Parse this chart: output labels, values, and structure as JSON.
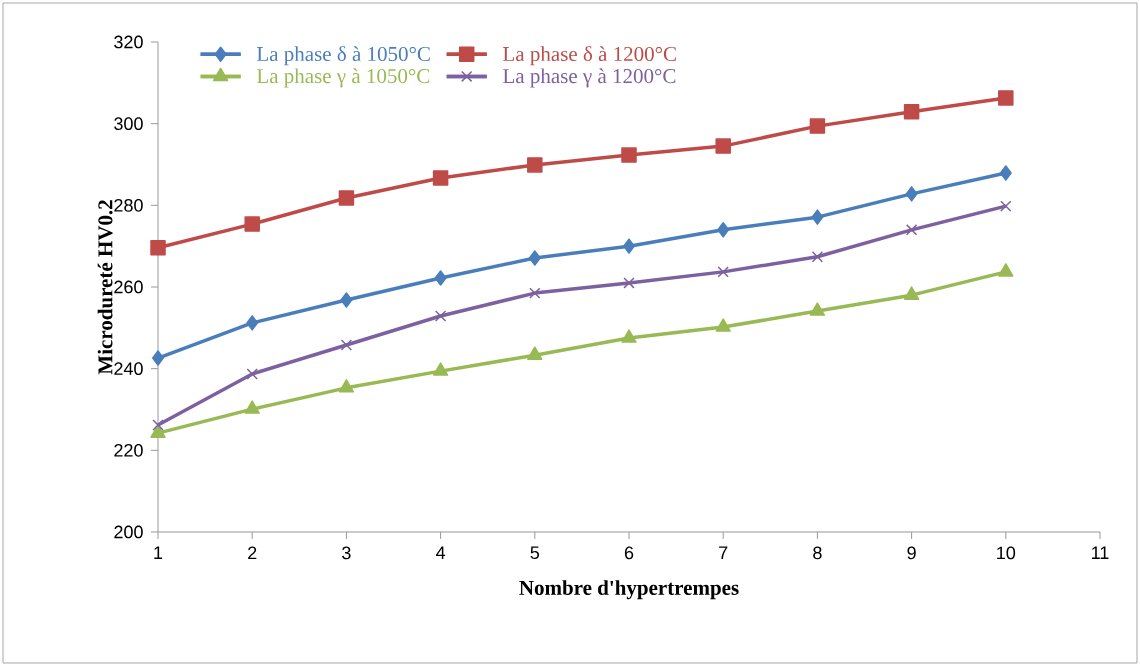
{
  "chart_data": {
    "type": "line",
    "xlabel": "Nombre d'hypertrempes",
    "ylabel": "Microdureté HV0.2",
    "x": [
      1,
      2,
      3,
      4,
      5,
      6,
      7,
      8,
      9,
      10
    ],
    "xlim": [
      1,
      11
    ],
    "xticks": [
      1,
      2,
      3,
      4,
      5,
      6,
      7,
      8,
      9,
      10,
      11
    ],
    "ylim": [
      200,
      320
    ],
    "yticks": [
      200,
      220,
      240,
      260,
      280,
      300,
      320
    ],
    "grid": false,
    "legend": "top left",
    "line_style": "solid",
    "series": [
      {
        "name": "La phase δ à 1050°C",
        "color": "#4a7ebb",
        "marker": "diamond",
        "values": [
          242.6,
          251.2,
          256.8,
          262.2,
          267.1,
          270.0,
          274.0,
          277.1,
          282.8,
          287.9
        ]
      },
      {
        "name": "La phase δ à 1200°C",
        "color": "#be4b48",
        "marker": "square",
        "values": [
          269.6,
          275.4,
          281.8,
          286.7,
          289.9,
          292.3,
          294.5,
          299.4,
          302.9,
          306.3
        ]
      },
      {
        "name": "La phase γ à 1050°C",
        "color": "#98b954",
        "marker": "triangle",
        "values": [
          224.2,
          230.1,
          235.3,
          239.4,
          243.3,
          247.5,
          250.2,
          254.1,
          258.0,
          263.7
        ]
      },
      {
        "name": "La phase γ à 1200°C",
        "color": "#7d60a0",
        "marker": "cross",
        "values": [
          226.2,
          238.7,
          245.8,
          252.9,
          258.5,
          261.0,
          263.7,
          267.4,
          274.0,
          279.8
        ]
      }
    ]
  }
}
